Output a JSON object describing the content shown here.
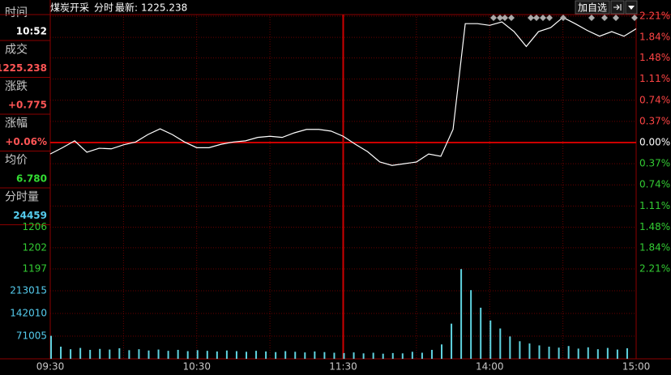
{
  "info_panel": [
    {
      "label": "时间",
      "value": "10:52",
      "color": "#ffffff"
    },
    {
      "label": "成交",
      "value": "1225.238",
      "color": "#ff5555"
    },
    {
      "label": "涨跌",
      "value": "+0.775",
      "color": "#ff5555"
    },
    {
      "label": "涨幅",
      "value": "+0.06%",
      "color": "#ff5555"
    },
    {
      "label": "均价",
      "value": "6.780",
      "color": "#33dd33"
    },
    {
      "label": "分时量",
      "value": "24459",
      "color": "#55ccee"
    }
  ],
  "header": {
    "name": "煤炭开采",
    "mode": "分时",
    "latest_label": "最新:",
    "latest": "1225.238"
  },
  "toolbar": {
    "add_watchlist": "加自选"
  },
  "chart_data": [
    {
      "type": "line",
      "color": "#ffffff",
      "x": [
        0,
        5,
        10,
        15,
        20,
        25,
        30,
        35,
        40,
        45,
        50,
        55,
        60,
        65,
        70,
        75,
        80,
        85,
        90,
        95,
        100,
        105,
        110,
        115,
        120,
        125,
        130,
        135,
        140,
        145,
        150,
        155,
        160,
        165,
        170,
        175,
        180,
        185,
        190,
        195,
        200,
        205,
        210,
        215,
        220,
        225,
        230,
        235,
        240
      ],
      "values": [
        -0.2,
        -0.09,
        0.03,
        -0.17,
        -0.1,
        -0.11,
        -0.04,
        0.01,
        0.14,
        0.24,
        0.14,
        0.01,
        -0.09,
        -0.09,
        -0.03,
        0.01,
        0.03,
        0.09,
        0.11,
        0.09,
        0.17,
        0.23,
        0.23,
        0.2,
        0.11,
        -0.03,
        -0.16,
        -0.34,
        -0.4,
        -0.37,
        -0.34,
        -0.2,
        -0.24,
        0.23,
        2.08,
        2.08,
        2.05,
        2.11,
        1.94,
        1.68,
        1.94,
        2.01,
        2.19,
        2.08,
        1.96,
        1.86,
        1.94,
        1.86,
        1.99
      ],
      "xlim": [
        0,
        240
      ],
      "ylim": [
        -2.21,
        2.21
      ],
      "yticks": [
        {
          "value": 2.21,
          "label": "2.21%"
        },
        {
          "value": 1.84,
          "label": "1.84%"
        },
        {
          "value": 1.48,
          "label": "1.48%"
        },
        {
          "value": 1.11,
          "label": "1.11%"
        },
        {
          "value": 0.74,
          "label": "0.74%"
        },
        {
          "value": 0.37,
          "label": "0.37%"
        },
        {
          "value": 0,
          "label": "0.00%"
        },
        {
          "value": -0.37,
          "label": "0.37%"
        },
        {
          "value": -0.74,
          "label": "0.74%"
        },
        {
          "value": -1.11,
          "label": "1.11%"
        },
        {
          "value": -1.48,
          "label": "1.48%"
        },
        {
          "value": -1.84,
          "label": "1.84%"
        },
        {
          "value": -2.21,
          "label": "2.21%"
        }
      ],
      "y2lim": [
        1197.4,
        1251.5
      ],
      "y2ticks": [
        {
          "value": 1206.3,
          "label": "1206"
        },
        {
          "value": 1201.9,
          "label": "1202"
        },
        {
          "value": 1197.4,
          "label": "1197"
        }
      ]
    },
    {
      "type": "bar",
      "color": "#5fd3e0",
      "x": [
        0,
        4,
        8,
        12,
        16,
        20,
        24,
        28,
        32,
        36,
        40,
        44,
        48,
        52,
        56,
        60,
        64,
        68,
        72,
        76,
        80,
        84,
        88,
        92,
        96,
        100,
        104,
        108,
        112,
        116,
        120,
        124,
        128,
        132,
        136,
        140,
        144,
        148,
        152,
        156,
        160,
        164,
        168,
        172,
        176,
        180,
        184,
        188,
        192,
        196,
        200,
        204,
        208,
        212,
        216,
        220,
        224,
        228,
        232,
        236
      ],
      "values": [
        72000,
        38000,
        30000,
        34000,
        28000,
        31000,
        29000,
        33000,
        27000,
        30000,
        26000,
        29000,
        25000,
        28000,
        24000,
        27000,
        25000,
        23000,
        26000,
        24000,
        22000,
        25000,
        23000,
        21000,
        24000,
        22000,
        20000,
        23000,
        21000,
        19000,
        18000,
        20000,
        17000,
        19000,
        16000,
        18000,
        17000,
        22000,
        19000,
        28000,
        45000,
        110000,
        281000,
        215000,
        160000,
        120000,
        95000,
        70000,
        55000,
        48000,
        42000,
        38000,
        35000,
        40000,
        32000,
        36000,
        30000,
        34000,
        29000,
        33000
      ],
      "xlim": [
        0,
        240
      ],
      "ylim": [
        0,
        281500
      ],
      "yticks": [
        71005,
        142010,
        213015
      ],
      "xticks": [
        {
          "value": 0,
          "label": "09:30"
        },
        {
          "value": 60,
          "label": "10:30"
        },
        {
          "value": 120,
          "label": "11:30"
        },
        {
          "value": 180,
          "label": "14:00"
        },
        {
          "value": 240,
          "label": "15:00"
        }
      ]
    }
  ]
}
